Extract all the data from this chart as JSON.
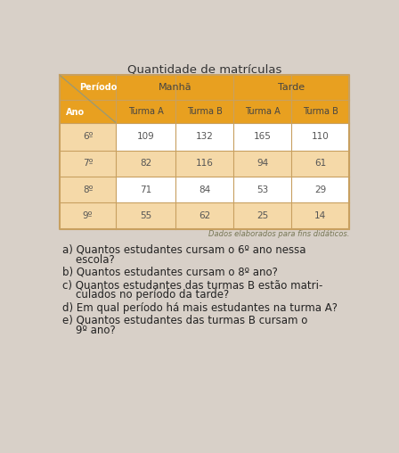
{
  "title": "Quantidade de matrículas",
  "table": {
    "anos": [
      "6º",
      "7º",
      "8º",
      "9º"
    ],
    "manha_a": [
      109,
      82,
      71,
      55
    ],
    "manha_b": [
      132,
      116,
      84,
      62
    ],
    "tarde_a": [
      165,
      94,
      53,
      25
    ],
    "tarde_b": [
      110,
      61,
      29,
      14
    ]
  },
  "note": "Dados elaborados para fins didáticos.",
  "q_texts": [
    "a) Quantos estudantes cursam o 6º ano nessa\n    escola?",
    "b) Quantos estudantes cursam o 8º ano?",
    "c) Quantos estudantes das turmas B estão matri-\n    culados no período da tarde?",
    "d) Em qual período há mais estudantes na turma A?",
    "e) Quantos estudantes das turmas B cursam o\n    9º ano?"
  ],
  "header_color": "#E8A020",
  "header_text_color": "#FFFFFF",
  "data_text_color": "#555555",
  "white": "#FFFFFF",
  "light_orange": "#F5D9A8",
  "border_color": "#C8A060",
  "bg_color": "#D8D0C8",
  "title_color": "#333333",
  "question_color": "#222222",
  "note_color": "#777755"
}
